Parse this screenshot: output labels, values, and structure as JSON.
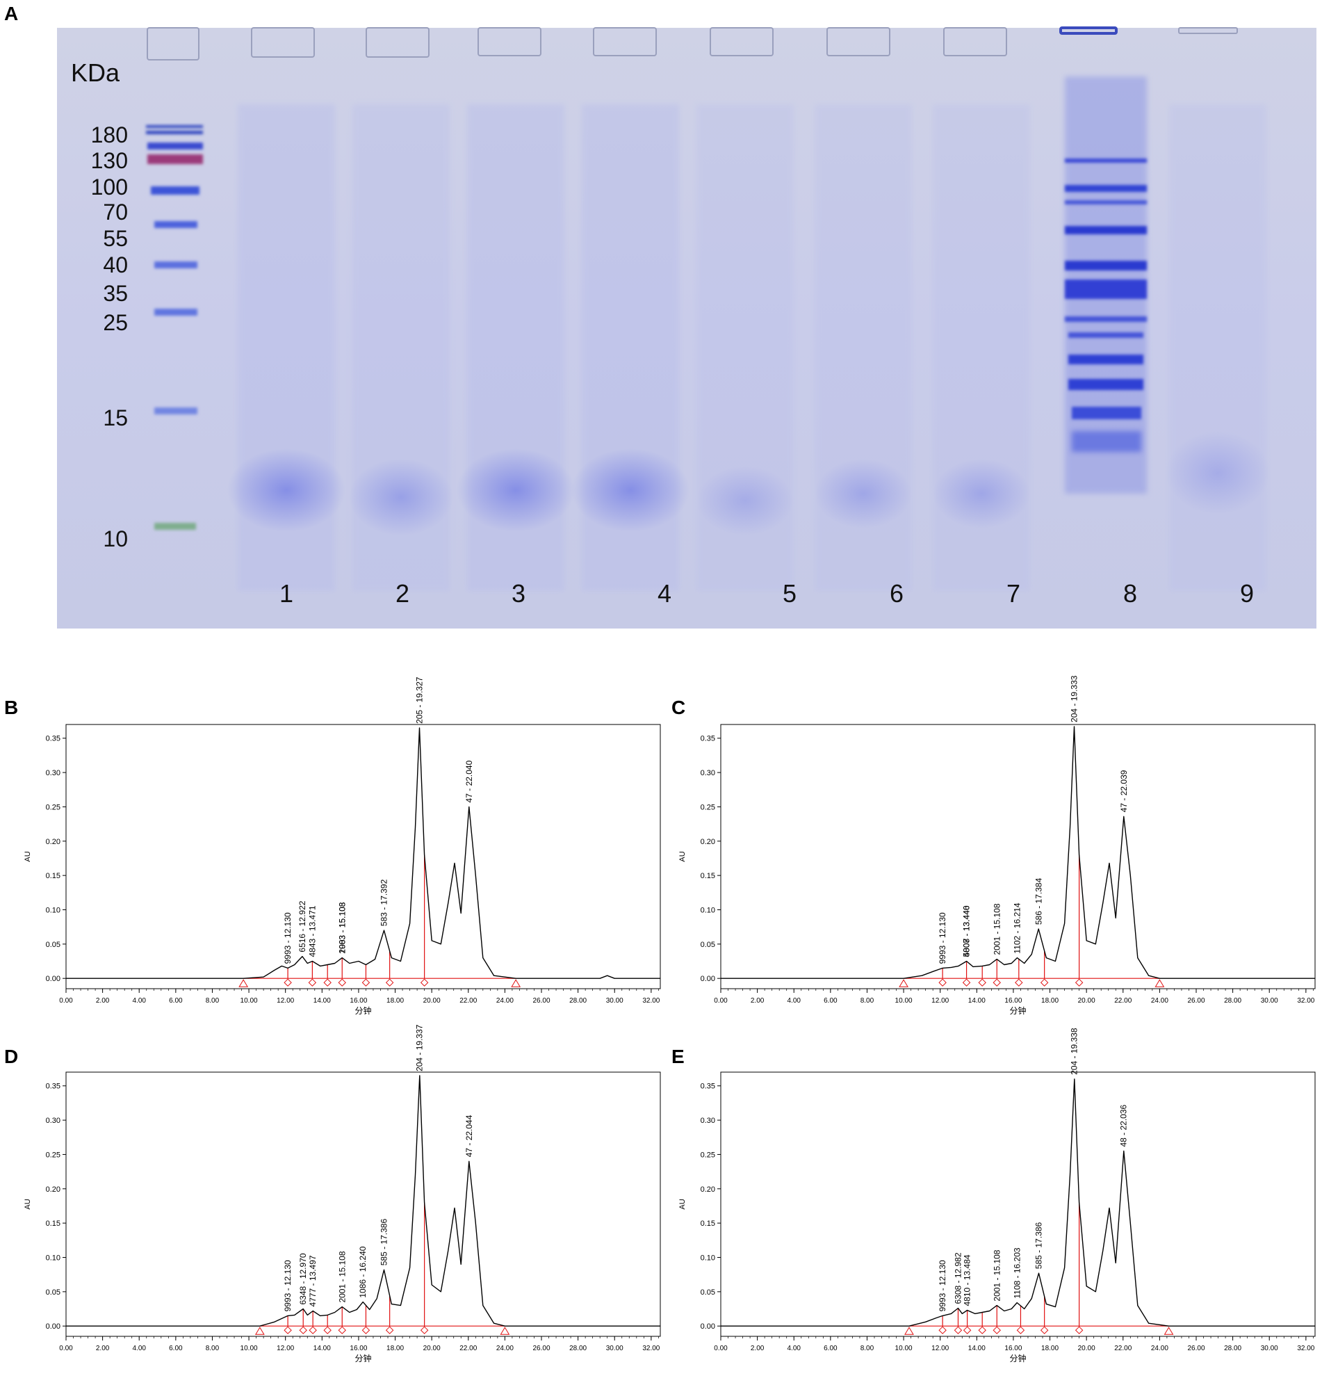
{
  "panel_labels": [
    "A",
    "B",
    "C",
    "D",
    "E"
  ],
  "gel": {
    "unit_label": "KDa",
    "marker_kda": [
      "180",
      "130",
      "100",
      "70",
      "55",
      "40",
      "35",
      "25",
      "15",
      "10"
    ],
    "lanes": [
      "1",
      "2",
      "3",
      "4",
      "5",
      "6",
      "7",
      "8",
      "9"
    ]
  },
  "chart_data": [
    {
      "panel": "B",
      "type": "line",
      "xlabel": "分钟",
      "ylabel": "AU",
      "xlim": [
        0.0,
        32.5
      ],
      "ylim": [
        -0.015,
        0.37
      ],
      "xticks": [
        "0.00",
        "2.00",
        "4.00",
        "6.00",
        "8.00",
        "10.00",
        "12.00",
        "14.00",
        "16.00",
        "18.00",
        "20.00",
        "22.00",
        "24.00",
        "26.00",
        "28.00",
        "30.00",
        "32.00"
      ],
      "yticks": [
        "0.00",
        "0.05",
        "0.10",
        "0.15",
        "0.20",
        "0.25",
        "0.30",
        "0.35"
      ],
      "peak_labels": [
        {
          "text": "9993 - 12.130",
          "x": 12.13,
          "y": 0.015
        },
        {
          "text": "6516 - 12.922",
          "x": 12.922,
          "y": 0.032
        },
        {
          "text": "4843 - 13.471",
          "x": 13.471,
          "y": 0.025
        },
        {
          "text": "2003 - 15.103",
          "x": 15.103,
          "y": 0.03
        },
        {
          "text": "1983 - 15.108",
          "x": 15.108,
          "y": 0.03
        },
        {
          "text": "583 - 17.392",
          "x": 17.392,
          "y": 0.07
        },
        {
          "text": "205 - 19.327",
          "x": 19.327,
          "y": 0.365
        },
        {
          "text": "47 - 22.040",
          "x": 22.04,
          "y": 0.25
        }
      ],
      "baseline": {
        "start": 9.7,
        "end": 24.6
      },
      "drop_lines": [
        12.13,
        13.47,
        14.3,
        15.1,
        16.4,
        17.7,
        19.6
      ],
      "trace_points": [
        [
          0,
          0
        ],
        [
          9.7,
          0
        ],
        [
          10.8,
          0.002
        ],
        [
          11.4,
          0.012
        ],
        [
          11.8,
          0.018
        ],
        [
          12.13,
          0.015
        ],
        [
          12.5,
          0.02
        ],
        [
          12.92,
          0.032
        ],
        [
          13.2,
          0.022
        ],
        [
          13.47,
          0.025
        ],
        [
          13.9,
          0.018
        ],
        [
          14.3,
          0.02
        ],
        [
          14.7,
          0.022
        ],
        [
          15.1,
          0.03
        ],
        [
          15.5,
          0.022
        ],
        [
          16.0,
          0.025
        ],
        [
          16.4,
          0.02
        ],
        [
          16.9,
          0.028
        ],
        [
          17.39,
          0.07
        ],
        [
          17.8,
          0.03
        ],
        [
          18.3,
          0.025
        ],
        [
          18.8,
          0.08
        ],
        [
          19.1,
          0.22
        ],
        [
          19.33,
          0.365
        ],
        [
          19.6,
          0.18
        ],
        [
          20.0,
          0.055
        ],
        [
          20.5,
          0.05
        ],
        [
          20.9,
          0.11
        ],
        [
          21.25,
          0.168
        ],
        [
          21.6,
          0.095
        ],
        [
          22.04,
          0.25
        ],
        [
          22.4,
          0.15
        ],
        [
          22.8,
          0.03
        ],
        [
          23.4,
          0.004
        ],
        [
          24.6,
          0.0
        ],
        [
          29.2,
          0.0
        ],
        [
          29.6,
          0.004
        ],
        [
          30.0,
          0.0
        ],
        [
          32.5,
          0.0
        ]
      ]
    },
    {
      "panel": "C",
      "type": "line",
      "xlabel": "分钟",
      "ylabel": "AU",
      "xlim": [
        0.0,
        32.5
      ],
      "ylim": [
        -0.015,
        0.37
      ],
      "xticks": [
        "0.00",
        "2.00",
        "4.00",
        "6.00",
        "8.00",
        "10.00",
        "12.00",
        "14.00",
        "16.00",
        "18.00",
        "20.00",
        "22.00",
        "24.00",
        "26.00",
        "28.00",
        "30.00",
        "32.00"
      ],
      "yticks": [
        "0.00",
        "0.05",
        "0.10",
        "0.15",
        "0.20",
        "0.25",
        "0.30",
        "0.35"
      ],
      "peak_labels": [
        {
          "text": "9993 - 12.130",
          "x": 12.13,
          "y": 0.015
        },
        {
          "text": "5007 - 13.440",
          "x": 13.44,
          "y": 0.025
        },
        {
          "text": "4808 - 13.446",
          "x": 13.446,
          "y": 0.025
        },
        {
          "text": "2001 - 15.108",
          "x": 15.108,
          "y": 0.028
        },
        {
          "text": "1102 - 16.214",
          "x": 16.214,
          "y": 0.03
        },
        {
          "text": "586 - 17.384",
          "x": 17.384,
          "y": 0.072
        },
        {
          "text": "204 - 19.333",
          "x": 19.333,
          "y": 0.367
        },
        {
          "text": "47 - 22.039",
          "x": 22.039,
          "y": 0.236
        }
      ],
      "baseline": {
        "start": 10.0,
        "end": 24.0
      },
      "drop_lines": [
        12.13,
        13.44,
        14.3,
        15.1,
        16.3,
        17.7,
        19.6
      ],
      "trace_points": [
        [
          0,
          0
        ],
        [
          10.0,
          0
        ],
        [
          11.0,
          0.004
        ],
        [
          11.6,
          0.01
        ],
        [
          12.13,
          0.015
        ],
        [
          12.6,
          0.016
        ],
        [
          13.0,
          0.018
        ],
        [
          13.44,
          0.025
        ],
        [
          13.8,
          0.017
        ],
        [
          14.3,
          0.018
        ],
        [
          14.7,
          0.02
        ],
        [
          15.1,
          0.028
        ],
        [
          15.5,
          0.02
        ],
        [
          15.9,
          0.022
        ],
        [
          16.21,
          0.03
        ],
        [
          16.6,
          0.022
        ],
        [
          17.0,
          0.035
        ],
        [
          17.38,
          0.072
        ],
        [
          17.8,
          0.03
        ],
        [
          18.3,
          0.025
        ],
        [
          18.8,
          0.08
        ],
        [
          19.1,
          0.22
        ],
        [
          19.33,
          0.367
        ],
        [
          19.6,
          0.18
        ],
        [
          20.0,
          0.055
        ],
        [
          20.5,
          0.05
        ],
        [
          20.9,
          0.11
        ],
        [
          21.25,
          0.168
        ],
        [
          21.6,
          0.088
        ],
        [
          22.04,
          0.236
        ],
        [
          22.4,
          0.15
        ],
        [
          22.8,
          0.03
        ],
        [
          23.4,
          0.004
        ],
        [
          24.0,
          0.0
        ],
        [
          32.5,
          0.0
        ]
      ]
    },
    {
      "panel": "D",
      "type": "line",
      "xlabel": "分钟",
      "ylabel": "AU",
      "xlim": [
        0.0,
        32.5
      ],
      "ylim": [
        -0.015,
        0.37
      ],
      "xticks": [
        "0.00",
        "2.00",
        "4.00",
        "6.00",
        "8.00",
        "10.00",
        "12.00",
        "14.00",
        "16.00",
        "18.00",
        "20.00",
        "22.00",
        "24.00",
        "26.00",
        "28.00",
        "30.00",
        "32.00"
      ],
      "yticks": [
        "0.00",
        "0.05",
        "0.10",
        "0.15",
        "0.20",
        "0.25",
        "0.30",
        "0.35"
      ],
      "peak_labels": [
        {
          "text": "9993 - 12.130",
          "x": 12.13,
          "y": 0.015
        },
        {
          "text": "6348 - 12.970",
          "x": 12.97,
          "y": 0.025
        },
        {
          "text": "4777 - 13.497",
          "x": 13.497,
          "y": 0.022
        },
        {
          "text": "2001 - 15.108",
          "x": 15.108,
          "y": 0.028
        },
        {
          "text": "1086 - 16.240",
          "x": 16.24,
          "y": 0.035
        },
        {
          "text": "585 - 17.386",
          "x": 17.386,
          "y": 0.082
        },
        {
          "text": "204 - 19.337",
          "x": 19.337,
          "y": 0.365
        },
        {
          "text": "47 - 22.044",
          "x": 22.044,
          "y": 0.24
        }
      ],
      "baseline": {
        "start": 10.6,
        "end": 24.0
      },
      "drop_lines": [
        12.13,
        12.97,
        13.5,
        14.3,
        15.1,
        16.4,
        17.7,
        19.6
      ],
      "trace_points": [
        [
          0,
          0
        ],
        [
          10.6,
          0
        ],
        [
          11.4,
          0.006
        ],
        [
          12.13,
          0.015
        ],
        [
          12.5,
          0.016
        ],
        [
          12.97,
          0.025
        ],
        [
          13.2,
          0.016
        ],
        [
          13.5,
          0.022
        ],
        [
          13.9,
          0.015
        ],
        [
          14.3,
          0.016
        ],
        [
          14.7,
          0.02
        ],
        [
          15.1,
          0.028
        ],
        [
          15.5,
          0.02
        ],
        [
          15.9,
          0.024
        ],
        [
          16.24,
          0.035
        ],
        [
          16.6,
          0.024
        ],
        [
          17.0,
          0.04
        ],
        [
          17.39,
          0.082
        ],
        [
          17.8,
          0.032
        ],
        [
          18.3,
          0.03
        ],
        [
          18.8,
          0.085
        ],
        [
          19.1,
          0.22
        ],
        [
          19.34,
          0.365
        ],
        [
          19.6,
          0.18
        ],
        [
          20.0,
          0.06
        ],
        [
          20.5,
          0.05
        ],
        [
          20.9,
          0.11
        ],
        [
          21.25,
          0.172
        ],
        [
          21.6,
          0.09
        ],
        [
          22.04,
          0.24
        ],
        [
          22.4,
          0.15
        ],
        [
          22.8,
          0.03
        ],
        [
          23.4,
          0.004
        ],
        [
          24.0,
          0.0
        ],
        [
          32.5,
          0.0
        ]
      ]
    },
    {
      "panel": "E",
      "type": "line",
      "xlabel": "分钟",
      "ylabel": "AU",
      "xlim": [
        0.0,
        32.5
      ],
      "ylim": [
        -0.015,
        0.37
      ],
      "xticks": [
        "0.00",
        "2.00",
        "4.00",
        "6.00",
        "8.00",
        "10.00",
        "12.00",
        "14.00",
        "16.00",
        "18.00",
        "20.00",
        "22.00",
        "24.00",
        "26.00",
        "28.00",
        "30.00",
        "32.00"
      ],
      "yticks": [
        "0.00",
        "0.05",
        "0.10",
        "0.15",
        "0.20",
        "0.25",
        "0.30",
        "0.35"
      ],
      "peak_labels": [
        {
          "text": "9993 - 12.130",
          "x": 12.13,
          "y": 0.015
        },
        {
          "text": "6308 - 12.982",
          "x": 12.982,
          "y": 0.026
        },
        {
          "text": "4810 - 13.484",
          "x": 13.484,
          "y": 0.023
        },
        {
          "text": "2001 - 15.108",
          "x": 15.108,
          "y": 0.03
        },
        {
          "text": "1108 - 16.203",
          "x": 16.203,
          "y": 0.034
        },
        {
          "text": "585 - 17.386",
          "x": 17.386,
          "y": 0.077
        },
        {
          "text": "204 - 19.338",
          "x": 19.338,
          "y": 0.36
        },
        {
          "text": "48 - 22.036",
          "x": 22.036,
          "y": 0.255
        }
      ],
      "baseline": {
        "start": 10.3,
        "end": 24.5
      },
      "drop_lines": [
        12.13,
        12.98,
        13.48,
        14.3,
        15.1,
        16.4,
        17.7,
        19.6
      ],
      "trace_points": [
        [
          0,
          0
        ],
        [
          10.3,
          0
        ],
        [
          11.2,
          0.006
        ],
        [
          11.8,
          0.012
        ],
        [
          12.13,
          0.015
        ],
        [
          12.6,
          0.018
        ],
        [
          12.98,
          0.026
        ],
        [
          13.2,
          0.018
        ],
        [
          13.48,
          0.023
        ],
        [
          13.9,
          0.018
        ],
        [
          14.3,
          0.02
        ],
        [
          14.7,
          0.022
        ],
        [
          15.1,
          0.03
        ],
        [
          15.5,
          0.022
        ],
        [
          15.9,
          0.025
        ],
        [
          16.2,
          0.034
        ],
        [
          16.6,
          0.025
        ],
        [
          17.0,
          0.04
        ],
        [
          17.39,
          0.077
        ],
        [
          17.8,
          0.032
        ],
        [
          18.3,
          0.028
        ],
        [
          18.8,
          0.085
        ],
        [
          19.1,
          0.22
        ],
        [
          19.34,
          0.36
        ],
        [
          19.6,
          0.18
        ],
        [
          20.0,
          0.058
        ],
        [
          20.5,
          0.05
        ],
        [
          20.9,
          0.11
        ],
        [
          21.25,
          0.172
        ],
        [
          21.6,
          0.092
        ],
        [
          22.04,
          0.255
        ],
        [
          22.4,
          0.15
        ],
        [
          22.8,
          0.03
        ],
        [
          23.4,
          0.004
        ],
        [
          24.5,
          0.0
        ],
        [
          32.5,
          0.0
        ]
      ]
    }
  ]
}
